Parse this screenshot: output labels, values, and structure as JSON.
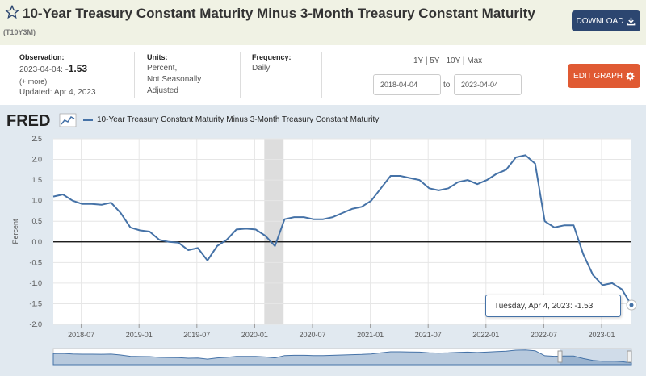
{
  "header": {
    "title": "10-Year Treasury Constant Maturity Minus 3-Month Treasury Constant Maturity",
    "series_id": "(T10Y3M)",
    "download_label": "DOWNLOAD"
  },
  "meta": {
    "observation_label": "Observation:",
    "observation_date": "2023-04-04:",
    "observation_value": "-1.53",
    "more_label": "(+ more)",
    "updated": "Updated: Apr 4, 2023",
    "units_label": "Units:",
    "units_line1": "Percent,",
    "units_line2": "Not Seasonally",
    "units_line3": "Adjusted",
    "frequency_label": "Frequency:",
    "frequency_value": "Daily"
  },
  "controls": {
    "range_1y": "1Y",
    "range_5y": "5Y",
    "range_10y": "10Y",
    "range_max": "Max",
    "range_sep": "|",
    "start_date": "2018-04-04",
    "to_label": "to",
    "end_date": "2023-04-04",
    "edit_label": "EDIT GRAPH"
  },
  "logo_text": "FRED",
  "legend_label": "10-Year Treasury Constant Maturity Minus 3-Month Treasury Constant Maturity",
  "tooltip": {
    "date": "Tuesday, Apr 4, 2023:",
    "value": "-1.53"
  },
  "colors": {
    "series": "#4572a7",
    "header_bg": "#f0f2e4",
    "download_bg": "#2c4670",
    "edit_bg": "#e05a33",
    "chart_bg": "#e1e9f0",
    "recession": "#dddddd"
  },
  "chart_data": {
    "type": "line",
    "title": "10-Year Treasury Constant Maturity Minus 3-Month Treasury Constant Maturity",
    "xlabel": "",
    "ylabel": "Percent",
    "ylim": [
      -2.0,
      2.5
    ],
    "yticks": [
      "2.5",
      "2.0",
      "1.5",
      "1.0",
      "0.5",
      "0.0",
      "-0.5",
      "-1.0",
      "-1.5",
      "-2.0"
    ],
    "xticks": [
      "2018-07",
      "2019-01",
      "2019-07",
      "2020-01",
      "2020-07",
      "2021-01",
      "2021-07",
      "2022-01",
      "2022-07",
      "2023-01"
    ],
    "recession": [
      "2020-02",
      "2020-04"
    ],
    "series": [
      {
        "name": "T10Y3M",
        "x": [
          "2018-04",
          "2018-05",
          "2018-06",
          "2018-07",
          "2018-08",
          "2018-09",
          "2018-10",
          "2018-11",
          "2018-12",
          "2019-01",
          "2019-02",
          "2019-03",
          "2019-04",
          "2019-05",
          "2019-06",
          "2019-07",
          "2019-08",
          "2019-09",
          "2019-10",
          "2019-11",
          "2019-12",
          "2020-01",
          "2020-02",
          "2020-03",
          "2020-04",
          "2020-05",
          "2020-06",
          "2020-07",
          "2020-08",
          "2020-09",
          "2020-10",
          "2020-11",
          "2020-12",
          "2021-01",
          "2021-02",
          "2021-03",
          "2021-04",
          "2021-05",
          "2021-06",
          "2021-07",
          "2021-08",
          "2021-09",
          "2021-10",
          "2021-11",
          "2021-12",
          "2022-01",
          "2022-02",
          "2022-03",
          "2022-04",
          "2022-05",
          "2022-06",
          "2022-07",
          "2022-08",
          "2022-09",
          "2022-10",
          "2022-11",
          "2022-12",
          "2023-01",
          "2023-02",
          "2023-03",
          "2023-04"
        ],
        "values": [
          1.1,
          1.15,
          1.0,
          0.92,
          0.92,
          0.9,
          0.95,
          0.7,
          0.35,
          0.28,
          0.25,
          0.05,
          0.0,
          -0.02,
          -0.2,
          -0.15,
          -0.45,
          -0.1,
          0.05,
          0.3,
          0.32,
          0.3,
          0.15,
          -0.1,
          0.55,
          0.6,
          0.6,
          0.55,
          0.55,
          0.6,
          0.7,
          0.8,
          0.85,
          1.0,
          1.3,
          1.6,
          1.6,
          1.55,
          1.5,
          1.3,
          1.25,
          1.3,
          1.45,
          1.5,
          1.4,
          1.5,
          1.65,
          1.75,
          2.05,
          2.1,
          1.9,
          0.5,
          0.35,
          0.4,
          0.4,
          -0.3,
          -0.8,
          -1.05,
          -1.0,
          -1.15,
          -1.53
        ]
      }
    ]
  }
}
